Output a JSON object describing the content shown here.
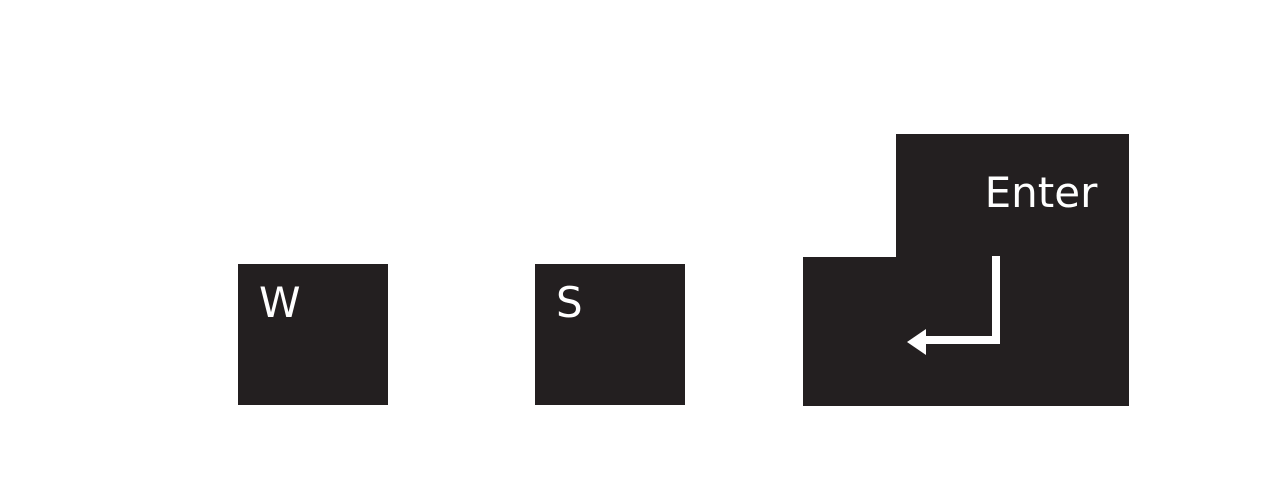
{
  "keys": [
    {
      "id": "w",
      "label": "W"
    },
    {
      "id": "s",
      "label": "S"
    },
    {
      "id": "enter",
      "label": "Enter",
      "icon": "return-arrow-icon"
    }
  ],
  "colors": {
    "key_fill": "#231f20",
    "key_text": "#ffffff",
    "background": "#ffffff"
  }
}
